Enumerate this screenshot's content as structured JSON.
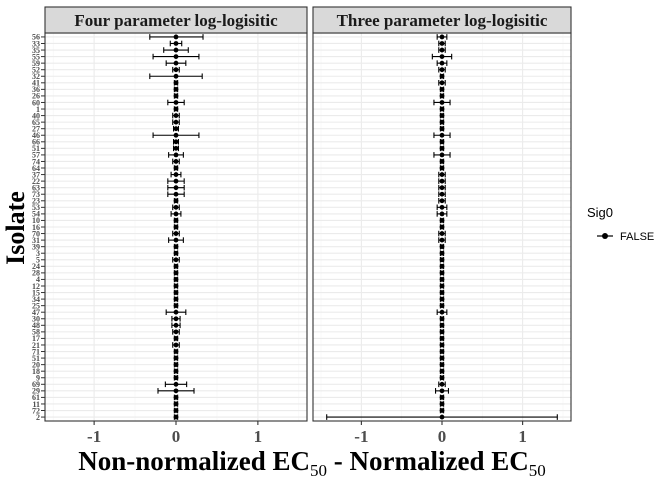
{
  "chart_data": {
    "type": "scatter",
    "xlabel": {
      "main": "Non-normalized EC",
      "sub1": "50",
      "mid": " - Normalized EC",
      "sub2": "50"
    },
    "ylabel": "Isolate",
    "xlim": [
      -1.6,
      1.6
    ],
    "x_ticks": [
      -1,
      0,
      1
    ],
    "x_tick_labels": [
      "-1",
      "0",
      "1"
    ],
    "grid": true,
    "legend": {
      "title": "Sig0",
      "position": "right",
      "entries": [
        "FALSE"
      ]
    },
    "isolates": [
      "56",
      "33",
      "35",
      "55",
      "59",
      "52",
      "32",
      "41",
      "36",
      "26",
      "60",
      "1",
      "40",
      "65",
      "27",
      "46",
      "66",
      "51",
      "57",
      "74",
      "64",
      "37",
      "22",
      "63",
      "73",
      "23",
      "53",
      "54",
      "10",
      "16",
      "70",
      "31",
      "39",
      "3",
      "5",
      "24",
      "28",
      "4",
      "12",
      "15",
      "34",
      "25",
      "47",
      "30",
      "48",
      "58",
      "17",
      "21",
      "71",
      "51",
      "20",
      "18",
      "9",
      "69",
      "29",
      "61",
      "11",
      "72",
      "2"
    ],
    "panels": [
      {
        "title": "Four parameter log-logisitic",
        "points": [
          {
            "isolate": "56",
            "value": 0.0,
            "lower": -0.32,
            "upper": 0.33
          },
          {
            "isolate": "33",
            "value": 0.0,
            "lower": -0.07,
            "upper": 0.07
          },
          {
            "isolate": "35",
            "value": 0.0,
            "lower": -0.15,
            "upper": 0.15
          },
          {
            "isolate": "55",
            "value": 0.0,
            "lower": -0.28,
            "upper": 0.28
          },
          {
            "isolate": "59",
            "value": 0.0,
            "lower": -0.12,
            "upper": 0.12
          },
          {
            "isolate": "52",
            "value": 0.0,
            "lower": -0.04,
            "upper": 0.04
          },
          {
            "isolate": "32",
            "value": 0.0,
            "lower": -0.32,
            "upper": 0.32
          },
          {
            "isolate": "41",
            "value": 0.0,
            "lower": -0.02,
            "upper": 0.02
          },
          {
            "isolate": "36",
            "value": 0.0,
            "lower": -0.02,
            "upper": 0.02
          },
          {
            "isolate": "26",
            "value": 0.0,
            "lower": -0.02,
            "upper": 0.02
          },
          {
            "isolate": "60",
            "value": 0.0,
            "lower": -0.1,
            "upper": 0.1
          },
          {
            "isolate": "1",
            "value": 0.0,
            "lower": -0.02,
            "upper": 0.02
          },
          {
            "isolate": "40",
            "value": 0.0,
            "lower": -0.04,
            "upper": 0.04
          },
          {
            "isolate": "65",
            "value": 0.0,
            "lower": -0.04,
            "upper": 0.04
          },
          {
            "isolate": "27",
            "value": 0.0,
            "lower": -0.03,
            "upper": 0.03
          },
          {
            "isolate": "46",
            "value": 0.0,
            "lower": -0.28,
            "upper": 0.28
          },
          {
            "isolate": "66",
            "value": 0.0,
            "lower": -0.03,
            "upper": 0.03
          },
          {
            "isolate": "51",
            "value": 0.0,
            "lower": -0.03,
            "upper": 0.03
          },
          {
            "isolate": "57",
            "value": 0.0,
            "lower": -0.09,
            "upper": 0.09
          },
          {
            "isolate": "74",
            "value": 0.0,
            "lower": -0.04,
            "upper": 0.04
          },
          {
            "isolate": "64",
            "value": 0.0,
            "lower": -0.02,
            "upper": 0.02
          },
          {
            "isolate": "37",
            "value": 0.0,
            "lower": -0.06,
            "upper": 0.06
          },
          {
            "isolate": "22",
            "value": 0.0,
            "lower": -0.1,
            "upper": 0.1
          },
          {
            "isolate": "63",
            "value": 0.0,
            "lower": -0.1,
            "upper": 0.1
          },
          {
            "isolate": "73",
            "value": 0.0,
            "lower": -0.1,
            "upper": 0.1
          },
          {
            "isolate": "23",
            "value": 0.0,
            "lower": -0.02,
            "upper": 0.02
          },
          {
            "isolate": "53",
            "value": 0.0,
            "lower": -0.04,
            "upper": 0.04
          },
          {
            "isolate": "54",
            "value": 0.0,
            "lower": -0.06,
            "upper": 0.06
          },
          {
            "isolate": "10",
            "value": 0.0,
            "lower": -0.02,
            "upper": 0.02
          },
          {
            "isolate": "16",
            "value": 0.0,
            "lower": -0.02,
            "upper": 0.02
          },
          {
            "isolate": "70",
            "value": 0.0,
            "lower": -0.04,
            "upper": 0.04
          },
          {
            "isolate": "31",
            "value": 0.0,
            "lower": -0.09,
            "upper": 0.09
          },
          {
            "isolate": "39",
            "value": 0.0,
            "lower": -0.02,
            "upper": 0.02
          },
          {
            "isolate": "3",
            "value": 0.0,
            "lower": -0.02,
            "upper": 0.02
          },
          {
            "isolate": "5",
            "value": 0.0,
            "lower": -0.04,
            "upper": 0.04
          },
          {
            "isolate": "24",
            "value": 0.0,
            "lower": -0.02,
            "upper": 0.02
          },
          {
            "isolate": "28",
            "value": 0.0,
            "lower": -0.02,
            "upper": 0.02
          },
          {
            "isolate": "4",
            "value": 0.0,
            "lower": -0.02,
            "upper": 0.02
          },
          {
            "isolate": "12",
            "value": 0.0,
            "lower": -0.02,
            "upper": 0.02
          },
          {
            "isolate": "15",
            "value": 0.0,
            "lower": -0.02,
            "upper": 0.02
          },
          {
            "isolate": "34",
            "value": 0.0,
            "lower": -0.02,
            "upper": 0.02
          },
          {
            "isolate": "25",
            "value": 0.0,
            "lower": -0.02,
            "upper": 0.02
          },
          {
            "isolate": "47",
            "value": 0.0,
            "lower": -0.12,
            "upper": 0.12
          },
          {
            "isolate": "30",
            "value": 0.0,
            "lower": -0.05,
            "upper": 0.05
          },
          {
            "isolate": "48",
            "value": 0.0,
            "lower": -0.05,
            "upper": 0.05
          },
          {
            "isolate": "58",
            "value": 0.0,
            "lower": -0.04,
            "upper": 0.04
          },
          {
            "isolate": "17",
            "value": 0.0,
            "lower": -0.02,
            "upper": 0.02
          },
          {
            "isolate": "21",
            "value": 0.0,
            "lower": -0.04,
            "upper": 0.04
          },
          {
            "isolate": "71",
            "value": 0.0,
            "lower": -0.02,
            "upper": 0.02
          },
          {
            "isolate": "51",
            "value": 0.0,
            "lower": -0.02,
            "upper": 0.02
          },
          {
            "isolate": "20",
            "value": 0.0,
            "lower": -0.02,
            "upper": 0.02
          },
          {
            "isolate": "18",
            "value": 0.0,
            "lower": -0.02,
            "upper": 0.02
          },
          {
            "isolate": "9",
            "value": 0.0,
            "lower": -0.02,
            "upper": 0.02
          },
          {
            "isolate": "69",
            "value": 0.0,
            "lower": -0.13,
            "upper": 0.13
          },
          {
            "isolate": "29",
            "value": 0.0,
            "lower": -0.22,
            "upper": 0.22
          },
          {
            "isolate": "61",
            "value": 0.0,
            "lower": -0.02,
            "upper": 0.02
          },
          {
            "isolate": "11",
            "value": 0.0,
            "lower": -0.02,
            "upper": 0.02
          },
          {
            "isolate": "72",
            "value": 0.0,
            "lower": -0.02,
            "upper": 0.02
          },
          {
            "isolate": "2",
            "value": 0.0,
            "lower": -0.02,
            "upper": 0.02
          }
        ]
      },
      {
        "title": "Three parameter log-logisitic",
        "points": [
          {
            "isolate": "56",
            "value": 0.0,
            "lower": -0.06,
            "upper": 0.06
          },
          {
            "isolate": "33",
            "value": 0.0,
            "lower": -0.04,
            "upper": 0.04
          },
          {
            "isolate": "35",
            "value": 0.0,
            "lower": -0.04,
            "upper": 0.04
          },
          {
            "isolate": "55",
            "value": 0.0,
            "lower": -0.12,
            "upper": 0.12
          },
          {
            "isolate": "59",
            "value": 0.0,
            "lower": -0.06,
            "upper": 0.06
          },
          {
            "isolate": "52",
            "value": 0.0,
            "lower": -0.04,
            "upper": 0.04
          },
          {
            "isolate": "32",
            "value": 0.0,
            "lower": -0.02,
            "upper": 0.02
          },
          {
            "isolate": "41",
            "value": 0.0,
            "lower": -0.04,
            "upper": 0.04
          },
          {
            "isolate": "36",
            "value": 0.0,
            "lower": -0.02,
            "upper": 0.02
          },
          {
            "isolate": "26",
            "value": 0.0,
            "lower": -0.02,
            "upper": 0.02
          },
          {
            "isolate": "60",
            "value": 0.0,
            "lower": -0.1,
            "upper": 0.1
          },
          {
            "isolate": "1",
            "value": 0.0,
            "lower": -0.02,
            "upper": 0.02
          },
          {
            "isolate": "40",
            "value": 0.0,
            "lower": -0.02,
            "upper": 0.02
          },
          {
            "isolate": "65",
            "value": 0.0,
            "lower": -0.02,
            "upper": 0.02
          },
          {
            "isolate": "27",
            "value": 0.0,
            "lower": -0.02,
            "upper": 0.02
          },
          {
            "isolate": "46",
            "value": 0.0,
            "lower": -0.1,
            "upper": 0.1
          },
          {
            "isolate": "66",
            "value": 0.0,
            "lower": -0.02,
            "upper": 0.02
          },
          {
            "isolate": "51",
            "value": 0.0,
            "lower": -0.02,
            "upper": 0.02
          },
          {
            "isolate": "57",
            "value": 0.0,
            "lower": -0.1,
            "upper": 0.1
          },
          {
            "isolate": "74",
            "value": 0.0,
            "lower": -0.02,
            "upper": 0.02
          },
          {
            "isolate": "64",
            "value": 0.0,
            "lower": -0.02,
            "upper": 0.02
          },
          {
            "isolate": "37",
            "value": 0.0,
            "lower": -0.04,
            "upper": 0.04
          },
          {
            "isolate": "22",
            "value": 0.0,
            "lower": -0.04,
            "upper": 0.04
          },
          {
            "isolate": "63",
            "value": 0.0,
            "lower": -0.04,
            "upper": 0.04
          },
          {
            "isolate": "73",
            "value": 0.0,
            "lower": -0.04,
            "upper": 0.04
          },
          {
            "isolate": "23",
            "value": 0.0,
            "lower": -0.04,
            "upper": 0.04
          },
          {
            "isolate": "53",
            "value": 0.0,
            "lower": -0.06,
            "upper": 0.06
          },
          {
            "isolate": "54",
            "value": 0.0,
            "lower": -0.06,
            "upper": 0.06
          },
          {
            "isolate": "10",
            "value": 0.0,
            "lower": -0.02,
            "upper": 0.02
          },
          {
            "isolate": "16",
            "value": 0.0,
            "lower": -0.02,
            "upper": 0.02
          },
          {
            "isolate": "70",
            "value": 0.0,
            "lower": -0.04,
            "upper": 0.04
          },
          {
            "isolate": "31",
            "value": 0.0,
            "lower": -0.04,
            "upper": 0.04
          },
          {
            "isolate": "39",
            "value": 0.0,
            "lower": -0.02,
            "upper": 0.02
          },
          {
            "isolate": "3",
            "value": 0.0,
            "lower": -0.02,
            "upper": 0.02
          },
          {
            "isolate": "5",
            "value": 0.0,
            "lower": -0.02,
            "upper": 0.02
          },
          {
            "isolate": "24",
            "value": 0.0,
            "lower": -0.02,
            "upper": 0.02
          },
          {
            "isolate": "28",
            "value": 0.0,
            "lower": -0.02,
            "upper": 0.02
          },
          {
            "isolate": "4",
            "value": 0.0,
            "lower": -0.02,
            "upper": 0.02
          },
          {
            "isolate": "12",
            "value": 0.0,
            "lower": -0.02,
            "upper": 0.02
          },
          {
            "isolate": "15",
            "value": 0.0,
            "lower": -0.02,
            "upper": 0.02
          },
          {
            "isolate": "34",
            "value": 0.0,
            "lower": -0.02,
            "upper": 0.02
          },
          {
            "isolate": "25",
            "value": 0.0,
            "lower": -0.02,
            "upper": 0.02
          },
          {
            "isolate": "47",
            "value": 0.0,
            "lower": -0.06,
            "upper": 0.06
          },
          {
            "isolate": "30",
            "value": 0.0,
            "lower": -0.02,
            "upper": 0.02
          },
          {
            "isolate": "48",
            "value": 0.0,
            "lower": -0.02,
            "upper": 0.02
          },
          {
            "isolate": "58",
            "value": 0.0,
            "lower": -0.02,
            "upper": 0.02
          },
          {
            "isolate": "17",
            "value": 0.0,
            "lower": -0.02,
            "upper": 0.02
          },
          {
            "isolate": "21",
            "value": 0.0,
            "lower": -0.02,
            "upper": 0.02
          },
          {
            "isolate": "71",
            "value": 0.0,
            "lower": -0.02,
            "upper": 0.02
          },
          {
            "isolate": "51",
            "value": 0.0,
            "lower": -0.02,
            "upper": 0.02
          },
          {
            "isolate": "20",
            "value": 0.0,
            "lower": -0.02,
            "upper": 0.02
          },
          {
            "isolate": "18",
            "value": 0.0,
            "lower": -0.02,
            "upper": 0.02
          },
          {
            "isolate": "9",
            "value": 0.0,
            "lower": -0.02,
            "upper": 0.02
          },
          {
            "isolate": "69",
            "value": 0.0,
            "lower": -0.04,
            "upper": 0.04
          },
          {
            "isolate": "29",
            "value": 0.0,
            "lower": -0.08,
            "upper": 0.08
          },
          {
            "isolate": "61",
            "value": 0.0,
            "lower": -0.02,
            "upper": 0.02
          },
          {
            "isolate": "11",
            "value": 0.0,
            "lower": -0.02,
            "upper": 0.02
          },
          {
            "isolate": "72",
            "value": 0.0,
            "lower": -0.02,
            "upper": 0.02
          },
          {
            "isolate": "2",
            "value": 0.0,
            "lower": -1.43,
            "upper": 1.43
          }
        ]
      }
    ]
  },
  "colors": {
    "point": "#000000",
    "strip_fill": "#d9d9d9",
    "panel_border": "#333333",
    "grid_major": "#ebebeb",
    "grid_minor": "#f5f5f5",
    "tick_text": "#4d4d4d"
  }
}
